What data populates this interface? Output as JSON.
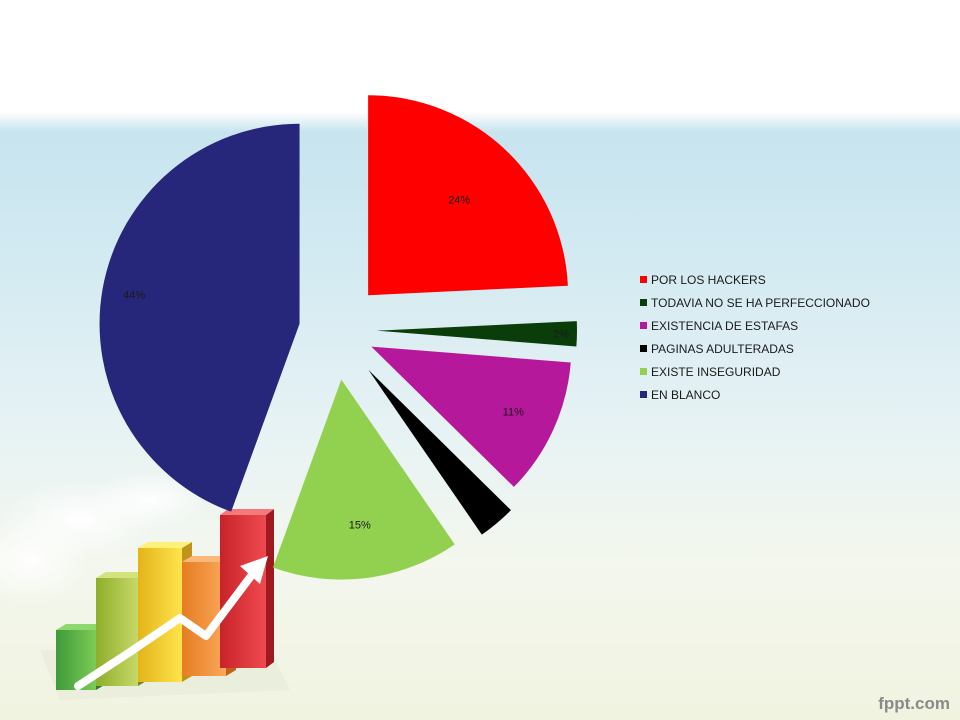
{
  "chart_data": {
    "type": "pie",
    "title": "",
    "exploded": true,
    "legend_position": "right",
    "slices": [
      {
        "name": "POR LOS HACKERS",
        "value": 24,
        "label": "24%",
        "color": "#ff0000"
      },
      {
        "name": "TODAVIA NO SE HA PERFECCIONADO",
        "value": 2,
        "label": "2%",
        "color": "#0b3d0b"
      },
      {
        "name": "EXISTENCIA DE ESTAFAS",
        "value": 11,
        "label": "11%",
        "color": "#b5189a"
      },
      {
        "name": "PAGINAS ADULTERADAS",
        "value": 3,
        "label": "",
        "color": "#000000"
      },
      {
        "name": "EXISTE INSEGURIDAD",
        "value": 15,
        "label": "15%",
        "color": "#92d050"
      },
      {
        "name": "EN BLANCO",
        "value": 44,
        "label": "44%",
        "color": "#26267a"
      }
    ]
  },
  "watermark": "fppt.com"
}
